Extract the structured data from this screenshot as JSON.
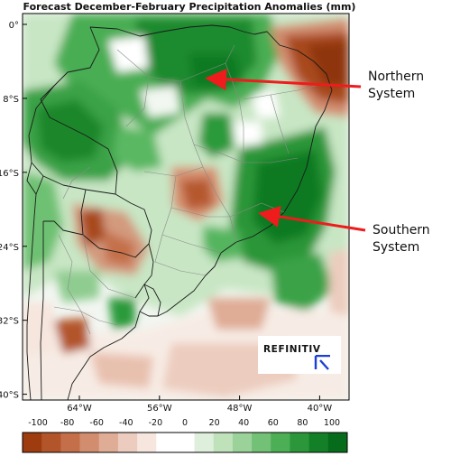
{
  "title": "Forecast December-February Precipitation Anomalies (mm)",
  "map": {
    "lat_ticks": [
      {
        "lat": 0,
        "label": "0°"
      },
      {
        "lat": -8,
        "label": "8°S"
      },
      {
        "lat": -16,
        "label": "16°S"
      },
      {
        "lat": -24,
        "label": "24°S"
      },
      {
        "lat": -32,
        "label": "32°S"
      },
      {
        "lat": -40,
        "label": "40°S"
      }
    ],
    "lon_ticks": [
      {
        "lon": -64,
        "label": "64°W"
      },
      {
        "lon": -56,
        "label": "56°W"
      },
      {
        "lon": -48,
        "label": "48°W"
      },
      {
        "lon": -40,
        "label": "40°W"
      }
    ],
    "colors": {
      "dry": "#a84a1e",
      "wet": "#1f8a2c",
      "neutral": "#ffffff"
    }
  },
  "colorbar": {
    "tick_labels": [
      "-100",
      "-80",
      "-60",
      "-40",
      "-20",
      "0",
      "20",
      "40",
      "60",
      "80",
      "100"
    ],
    "colors": [
      "#9e3b0f",
      "#b3552a",
      "#c46f49",
      "#d28d6f",
      "#dfac95",
      "#ecccbe",
      "#f6e6de",
      "#ffffff",
      "#ffffff",
      "#deefdb",
      "#bfe2bb",
      "#9bd29a",
      "#73c077",
      "#4caf55",
      "#2b973a",
      "#137f27",
      "#066b1b"
    ]
  },
  "annotations": [
    {
      "line1": "Northern",
      "line2": "System"
    },
    {
      "line1": "Southern",
      "line2": "System"
    }
  ],
  "logo": {
    "text": "REFINITIV"
  }
}
